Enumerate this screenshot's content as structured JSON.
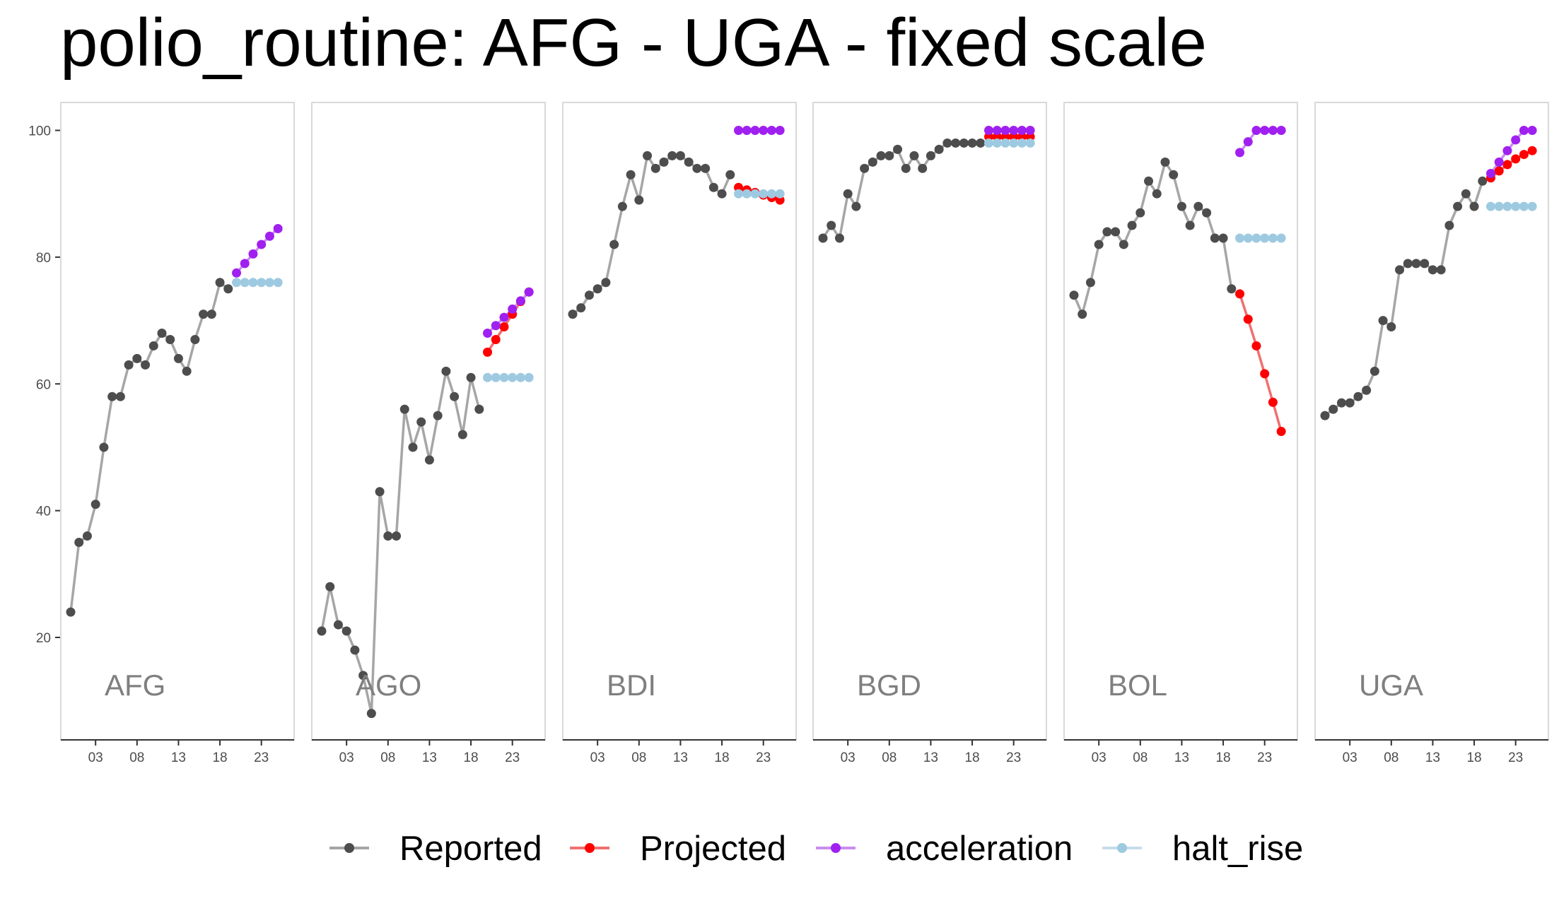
{
  "title": "polio_routine: AFG - UGA - fixed scale",
  "chart_data": {
    "type": "line",
    "title": "polio_routine: AFG - UGA - fixed scale",
    "xlabel": "",
    "ylabel": "",
    "xlim": [
      2000,
      2025.5
    ],
    "ylim": [
      5,
      105
    ],
    "x_ticks": [
      2003,
      2008,
      2013,
      2018,
      2023
    ],
    "x_tick_labels": [
      "03",
      "08",
      "13",
      "18",
      "23"
    ],
    "y_ticks": [
      20,
      40,
      60,
      80,
      100
    ],
    "y_tick_labels": [
      "20",
      "40",
      "60",
      "80",
      "100"
    ],
    "grid": false,
    "facets": "fixed scale, one panel per country",
    "legend": {
      "position": "bottom",
      "entries": [
        {
          "name": "Reported",
          "color": "#4d4d4d",
          "line_color": "#a6a6a6"
        },
        {
          "name": "Projected",
          "color": "#ff0000",
          "line_color": "#f26f6f"
        },
        {
          "name": "acceleration",
          "color": "#a020f0",
          "line_color": "#c98df0"
        },
        {
          "name": "halt_rise",
          "color": "#9ecae1",
          "line_color": "#c6dcec"
        }
      ]
    },
    "panels": [
      {
        "label": "AFG",
        "series": [
          {
            "name": "Reported",
            "x": [
              2000,
              2001,
              2002,
              2003,
              2004,
              2005,
              2006,
              2007,
              2008,
              2009,
              2010,
              2011,
              2012,
              2013,
              2014,
              2015,
              2016,
              2017,
              2018,
              2019
            ],
            "y": [
              24,
              35,
              36,
              41,
              50,
              58,
              58,
              63,
              64,
              63,
              66,
              68,
              67,
              64,
              62,
              67,
              71,
              71,
              76,
              75
            ]
          },
          {
            "name": "acceleration",
            "x": [
              2020,
              2021,
              2022,
              2023,
              2024,
              2025
            ],
            "y": [
              77.5,
              79,
              80.5,
              82,
              83.3,
              84.5
            ]
          },
          {
            "name": "halt_rise",
            "x": [
              2020,
              2021,
              2022,
              2023,
              2024,
              2025
            ],
            "y": [
              76,
              76,
              76,
              76,
              76,
              76
            ]
          }
        ]
      },
      {
        "label": "AGO",
        "series": [
          {
            "name": "Reported",
            "x": [
              2000,
              2001,
              2002,
              2003,
              2004,
              2005,
              2006,
              2007,
              2008,
              2009,
              2010,
              2011,
              2012,
              2013,
              2014,
              2015,
              2016,
              2017,
              2018,
              2019
            ],
            "y": [
              21,
              28,
              22,
              21,
              18,
              14,
              8,
              43,
              36,
              36,
              56,
              50,
              54,
              48,
              55,
              62,
              58,
              52,
              61,
              56
            ]
          },
          {
            "name": "Projected",
            "x": [
              2020,
              2021,
              2022,
              2023,
              2024,
              2025
            ],
            "y": [
              65,
              67,
              69,
              71,
              73,
              74.5
            ]
          },
          {
            "name": "acceleration",
            "x": [
              2020,
              2021,
              2022,
              2023,
              2024,
              2025
            ],
            "y": [
              68,
              69.2,
              70.5,
              71.8,
              73.1,
              74.5
            ]
          },
          {
            "name": "halt_rise",
            "x": [
              2020,
              2021,
              2022,
              2023,
              2024,
              2025
            ],
            "y": [
              61,
              61,
              61,
              61,
              61,
              61
            ]
          }
        ]
      },
      {
        "label": "BDI",
        "series": [
          {
            "name": "Reported",
            "x": [
              2000,
              2001,
              2002,
              2003,
              2004,
              2005,
              2006,
              2007,
              2008,
              2009,
              2010,
              2011,
              2012,
              2013,
              2014,
              2015,
              2016,
              2017,
              2018,
              2019
            ],
            "y": [
              71,
              72,
              74,
              75,
              76,
              82,
              88,
              93,
              89,
              96,
              94,
              95,
              96,
              96,
              95,
              94,
              94,
              91,
              90,
              93
            ]
          },
          {
            "name": "Projected",
            "x": [
              2020,
              2021,
              2022,
              2023,
              2024,
              2025
            ],
            "y": [
              91,
              90.6,
              90.2,
              89.8,
              89.4,
              89
            ]
          },
          {
            "name": "acceleration",
            "x": [
              2020,
              2021,
              2022,
              2023,
              2024,
              2025
            ],
            "y": [
              100,
              100,
              100,
              100,
              100,
              100
            ]
          },
          {
            "name": "halt_rise",
            "x": [
              2020,
              2021,
              2022,
              2023,
              2024,
              2025
            ],
            "y": [
              90,
              90,
              90,
              90,
              90,
              90
            ]
          }
        ]
      },
      {
        "label": "BGD",
        "series": [
          {
            "name": "Reported",
            "x": [
              2000,
              2001,
              2002,
              2003,
              2004,
              2005,
              2006,
              2007,
              2008,
              2009,
              2010,
              2011,
              2012,
              2013,
              2014,
              2015,
              2016,
              2017,
              2018,
              2019
            ],
            "y": [
              83,
              85,
              83,
              90,
              88,
              94,
              95,
              96,
              96,
              97,
              94,
              96,
              94,
              96,
              97,
              98,
              98,
              98,
              98,
              98
            ]
          },
          {
            "name": "Projected",
            "x": [
              2020,
              2021,
              2022,
              2023,
              2024,
              2025
            ],
            "y": [
              99,
              99,
              99,
              99,
              99,
              99
            ]
          },
          {
            "name": "acceleration",
            "x": [
              2020,
              2021,
              2022,
              2023,
              2024,
              2025
            ],
            "y": [
              100,
              100,
              100,
              100,
              100,
              100
            ]
          },
          {
            "name": "halt_rise",
            "x": [
              2020,
              2021,
              2022,
              2023,
              2024,
              2025
            ],
            "y": [
              98,
              98,
              98,
              98,
              98,
              98
            ]
          }
        ]
      },
      {
        "label": "BOL",
        "series": [
          {
            "name": "Reported",
            "x": [
              2000,
              2001,
              2002,
              2003,
              2004,
              2005,
              2006,
              2007,
              2008,
              2009,
              2010,
              2011,
              2012,
              2013,
              2014,
              2015,
              2016,
              2017,
              2018,
              2019
            ],
            "y": [
              74,
              71,
              76,
              82,
              84,
              84,
              82,
              85,
              87,
              92,
              90,
              95,
              93,
              88,
              85,
              88,
              87,
              83,
              83,
              75
            ]
          },
          {
            "name": "Projected",
            "x": [
              2020,
              2021,
              2022,
              2023,
              2024,
              2025
            ],
            "y": [
              74.2,
              70.2,
              66,
              61.6,
              57.1,
              52.5
            ]
          },
          {
            "name": "acceleration",
            "x": [
              2020,
              2021,
              2022,
              2023,
              2024,
              2025
            ],
            "y": [
              96.5,
              98.2,
              100,
              100,
              100,
              100
            ]
          },
          {
            "name": "halt_rise",
            "x": [
              2020,
              2021,
              2022,
              2023,
              2024,
              2025
            ],
            "y": [
              83,
              83,
              83,
              83,
              83,
              83
            ]
          }
        ]
      },
      {
        "label": "UGA",
        "series": [
          {
            "name": "Reported",
            "x": [
              2000,
              2001,
              2002,
              2003,
              2004,
              2005,
              2006,
              2007,
              2008,
              2009,
              2010,
              2011,
              2012,
              2013,
              2014,
              2015,
              2016,
              2017,
              2018,
              2019
            ],
            "y": [
              55,
              56,
              57,
              57,
              58,
              59,
              62,
              70,
              69,
              78,
              79,
              79,
              79,
              78,
              78,
              85,
              88,
              90,
              88,
              92
            ]
          },
          {
            "name": "Projected",
            "x": [
              2020,
              2021,
              2022,
              2023,
              2024,
              2025
            ],
            "y": [
              92.5,
              93.6,
              94.6,
              95.5,
              96.2,
              96.8
            ]
          },
          {
            "name": "acceleration",
            "x": [
              2020,
              2021,
              2022,
              2023,
              2024,
              2025
            ],
            "y": [
              93.2,
              95,
              96.8,
              98.5,
              100,
              100
            ]
          },
          {
            "name": "halt_rise",
            "x": [
              2020,
              2021,
              2022,
              2023,
              2024,
              2025
            ],
            "y": [
              88,
              88,
              88,
              88,
              88,
              88
            ]
          }
        ]
      }
    ]
  }
}
